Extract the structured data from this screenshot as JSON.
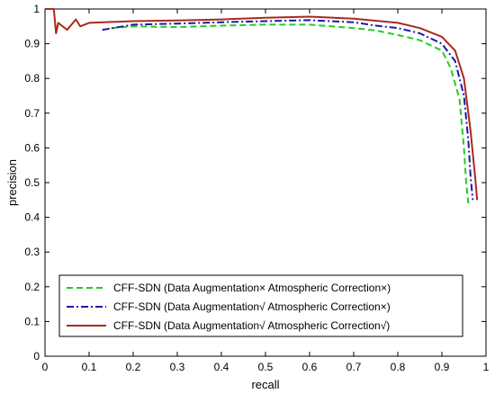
{
  "chart_data": {
    "type": "line",
    "title": "",
    "xlabel": "recall",
    "ylabel": "precision",
    "xlim": [
      0,
      1
    ],
    "ylim": [
      0,
      1
    ],
    "grid": false,
    "legend_position": "bottom-center",
    "x_ticks": [
      "0",
      "0.1",
      "0.2",
      "0.3",
      "0.4",
      "0.5",
      "0.6",
      "0.7",
      "0.8",
      "0.9",
      "1"
    ],
    "y_ticks": [
      "0",
      "0.1",
      "0.2",
      "0.3",
      "0.4",
      "0.5",
      "0.6",
      "0.7",
      "0.8",
      "0.9",
      "1"
    ],
    "series": [
      {
        "name": "CFF-SDN (Data Augmentation× Atmospheric Correction×)",
        "color": "#22cc22",
        "style": "dashed",
        "x": [
          0.15,
          0.2,
          0.3,
          0.4,
          0.5,
          0.6,
          0.7,
          0.75,
          0.8,
          0.85,
          0.9,
          0.92,
          0.94,
          0.95,
          0.955,
          0.96
        ],
        "y": [
          0.945,
          0.95,
          0.948,
          0.952,
          0.955,
          0.955,
          0.945,
          0.938,
          0.925,
          0.91,
          0.88,
          0.83,
          0.74,
          0.6,
          0.5,
          0.44
        ]
      },
      {
        "name": "CFF-SDN (Data Augmentation√ Atmospheric Correction×)",
        "color": "#1a1aaa",
        "style": "dashdot",
        "x": [
          0.13,
          0.2,
          0.3,
          0.4,
          0.5,
          0.6,
          0.7,
          0.75,
          0.8,
          0.85,
          0.9,
          0.93,
          0.95,
          0.96,
          0.965,
          0.97
        ],
        "y": [
          0.94,
          0.955,
          0.958,
          0.962,
          0.965,
          0.968,
          0.962,
          0.952,
          0.945,
          0.93,
          0.9,
          0.85,
          0.75,
          0.62,
          0.52,
          0.45
        ]
      },
      {
        "name": "CFF-SDN (Data Augmentation√ Atmospheric Correction√)",
        "color": "#aa2a1a",
        "style": "solid",
        "x": [
          0.0,
          0.02,
          0.025,
          0.03,
          0.05,
          0.07,
          0.08,
          0.1,
          0.2,
          0.3,
          0.4,
          0.5,
          0.6,
          0.7,
          0.8,
          0.85,
          0.9,
          0.93,
          0.95,
          0.965,
          0.975,
          0.98
        ],
        "y": [
          1.0,
          1.0,
          0.93,
          0.96,
          0.94,
          0.97,
          0.95,
          0.96,
          0.965,
          0.967,
          0.97,
          0.975,
          0.978,
          0.972,
          0.96,
          0.945,
          0.92,
          0.88,
          0.8,
          0.65,
          0.52,
          0.45
        ]
      }
    ]
  }
}
